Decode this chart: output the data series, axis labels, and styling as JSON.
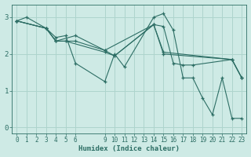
{
  "background_color": "#ceeae5",
  "grid_color": "#aed4cd",
  "line_color": "#2d6e65",
  "marker_color": "#2d6e65",
  "xlabel": "Humidex (Indice chaleur)",
  "yticks": [
    0,
    1,
    2,
    3
  ],
  "ylim": [
    -0.15,
    3.35
  ],
  "xlim": [
    -0.5,
    23.5
  ],
  "lines": [
    {
      "x": [
        0,
        1,
        3,
        4,
        5,
        6,
        9,
        10,
        11,
        14,
        15,
        16,
        17,
        18,
        19,
        20,
        21,
        22,
        23
      ],
      "y": [
        2.9,
        3.0,
        2.7,
        2.45,
        2.5,
        1.75,
        1.25,
        2.0,
        1.65,
        3.0,
        3.1,
        2.65,
        1.35,
        1.35,
        0.8,
        0.35,
        1.35,
        0.25,
        0.25
      ]
    },
    {
      "x": [
        0,
        3,
        4,
        5,
        6,
        9,
        10,
        14,
        15,
        16,
        17,
        18,
        22,
        23
      ],
      "y": [
        2.9,
        2.7,
        2.35,
        2.35,
        2.35,
        2.1,
        1.95,
        2.8,
        2.75,
        1.75,
        1.7,
        1.7,
        1.85,
        1.35
      ]
    },
    {
      "x": [
        0,
        3,
        4,
        5,
        9,
        10,
        14,
        15,
        22,
        23
      ],
      "y": [
        2.9,
        2.7,
        2.35,
        2.35,
        2.05,
        1.95,
        2.8,
        2.05,
        1.85,
        1.35
      ]
    },
    {
      "x": [
        0,
        3,
        4,
        6,
        9,
        14,
        15,
        22,
        23
      ],
      "y": [
        2.9,
        2.7,
        2.35,
        2.5,
        2.1,
        2.8,
        2.0,
        1.85,
        1.35
      ]
    }
  ],
  "xtick_positions": [
    0,
    1,
    2,
    3,
    4,
    5,
    6,
    9,
    10,
    11,
    12,
    13,
    14,
    15,
    16,
    17,
    18,
    19,
    20,
    21,
    22,
    23
  ],
  "xtick_labels": [
    "0",
    "1",
    "2",
    "3",
    "4",
    "5",
    "6",
    "9",
    "10",
    "11",
    "12",
    "13",
    "14",
    "15",
    "16",
    "17",
    "18",
    "19",
    "20",
    "21",
    "22",
    "23"
  ],
  "xlabel_fontsize": 6.5,
  "tick_fontsize": 5.5,
  "ytick_fontsize": 6.5
}
